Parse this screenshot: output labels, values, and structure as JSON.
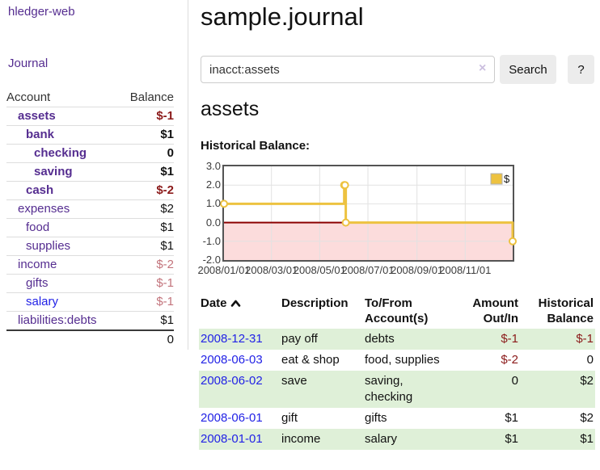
{
  "brand": "hledger-web",
  "nav": {
    "journal": "Journal"
  },
  "sidebar": {
    "header": {
      "account": "Account",
      "balance": "Balance"
    },
    "accounts": [
      {
        "name": "assets",
        "depth": 1,
        "in_focus": true,
        "balance": "$-1",
        "balance_tone": "negative"
      },
      {
        "name": "bank",
        "depth": 2,
        "in_focus": true,
        "balance": "$1",
        "balance_tone": "positive"
      },
      {
        "name": "checking",
        "depth": 3,
        "in_focus": true,
        "balance": "0",
        "balance_tone": "positive"
      },
      {
        "name": "saving",
        "depth": 3,
        "in_focus": true,
        "balance": "$1",
        "balance_tone": "positive"
      },
      {
        "name": "cash",
        "depth": 2,
        "in_focus": true,
        "balance": "$-2",
        "balance_tone": "negative"
      },
      {
        "name": "expenses",
        "depth": 1,
        "in_focus": false,
        "balance": "$2",
        "balance_tone": "positive"
      },
      {
        "name": "food",
        "depth": 2,
        "in_focus": false,
        "balance": "$1",
        "balance_tone": "positive"
      },
      {
        "name": "supplies",
        "depth": 2,
        "in_focus": false,
        "balance": "$1",
        "balance_tone": "positive"
      },
      {
        "name": "income",
        "depth": 1,
        "in_focus": false,
        "balance": "$-2",
        "balance_tone": "negative-muted"
      },
      {
        "name": "gifts",
        "depth": 2,
        "in_focus": false,
        "balance": "$-1",
        "balance_tone": "negative-muted"
      },
      {
        "name": "salary",
        "depth": 2,
        "in_focus": false,
        "unvisited": true,
        "balance": "$-1",
        "balance_tone": "negative-muted"
      },
      {
        "name": "liabilities:debts",
        "depth": 1,
        "in_focus": false,
        "balance": "$1",
        "balance_tone": "positive"
      }
    ],
    "total": "0"
  },
  "main": {
    "title": "sample.journal",
    "search": {
      "value": "inacct:assets",
      "clear_label": "×",
      "button": "Search",
      "help": "?"
    },
    "account_heading": "assets",
    "chart_title": "Historical Balance:"
  },
  "chart_data": {
    "type": "line",
    "step": true,
    "title": "Historical Balance:",
    "xlim": [
      "2008-01-01",
      "2008-12-31"
    ],
    "ylim": [
      -2,
      3
    ],
    "points": [
      [
        "2008-01-01",
        1
      ],
      [
        "2008-06-01",
        2
      ],
      [
        "2008-06-02",
        2
      ],
      [
        "2008-06-03",
        0
      ],
      [
        "2008-12-31",
        -1
      ]
    ],
    "x_ticks": [
      {
        "date": "2008-01-01",
        "label": "2008/01/01"
      },
      {
        "date": "2008-03-01",
        "label": "2008/03/01"
      },
      {
        "date": "2008-05-01",
        "label": "2008/05/01"
      },
      {
        "date": "2008-07-01",
        "label": "2008/07/01"
      },
      {
        "date": "2008-09-01",
        "label": "2008/09/01"
      },
      {
        "date": "2008-11-01",
        "label": "2008/11/01"
      }
    ],
    "y_ticks": [
      "3.0",
      "2.0",
      "1.0",
      "0.0",
      "-1.0",
      "-2.0"
    ],
    "legend": {
      "label": "$",
      "position": "top-right"
    },
    "grid": true,
    "colors": {
      "line": "#edc240",
      "negative_fill": "#fcdcdc",
      "zero_line": "#8b0000",
      "grid": "#e2e2e2",
      "border": "#545454"
    }
  },
  "register": {
    "headers": {
      "date": "Date",
      "description": "Description",
      "accounts": "To/From Account(s)",
      "amount": "Amount Out/In",
      "balance": "Historical Balance"
    },
    "sort": "ascending",
    "rows": [
      {
        "date": "2008-12-31",
        "description": "pay off",
        "accounts": "debts",
        "amount": "$-1",
        "amount_neg": true,
        "balance": "$-1",
        "balance_neg": true
      },
      {
        "date": "2008-06-03",
        "description": "eat & shop",
        "accounts": "food, supplies",
        "amount": "$-2",
        "amount_neg": true,
        "balance": "0",
        "balance_neg": false
      },
      {
        "date": "2008-06-02",
        "description": "save",
        "accounts": "saving, checking",
        "amount": "0",
        "amount_neg": false,
        "balance": "$2",
        "balance_neg": false
      },
      {
        "date": "2008-06-01",
        "description": "gift",
        "accounts": "gifts",
        "amount": "$1",
        "amount_neg": false,
        "balance": "$2",
        "balance_neg": false
      },
      {
        "date": "2008-01-01",
        "description": "income",
        "accounts": "salary",
        "amount": "$1",
        "amount_neg": false,
        "balance": "$1",
        "balance_neg": false
      }
    ]
  }
}
